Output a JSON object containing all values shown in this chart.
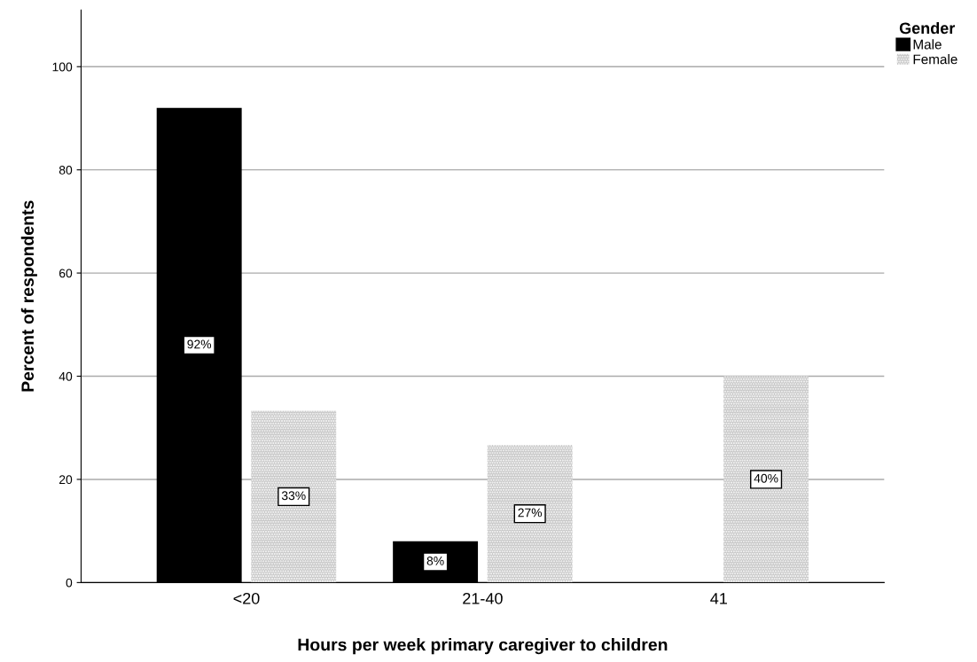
{
  "chart_data": {
    "type": "bar",
    "xlabel": "Hours per week primary caregiver to children",
    "ylabel": "Percent of respondents",
    "legend_title": "Gender",
    "categories": [
      "<20",
      "21-40",
      "41"
    ],
    "series": [
      {
        "name": "Male",
        "color": "#000000",
        "values": [
          92,
          8,
          null
        ],
        "value_labels": [
          "92%",
          "8%",
          null
        ]
      },
      {
        "name": "Female",
        "color": "#c8c8c8",
        "values": [
          33.3,
          26.7,
          40
        ],
        "value_labels": [
          "33%",
          "27%",
          "40%"
        ]
      }
    ],
    "ylim": [
      0,
      111
    ],
    "yticks": [
      0,
      20,
      40,
      60,
      80,
      100
    ],
    "grid": "y",
    "legend": "top right"
  }
}
